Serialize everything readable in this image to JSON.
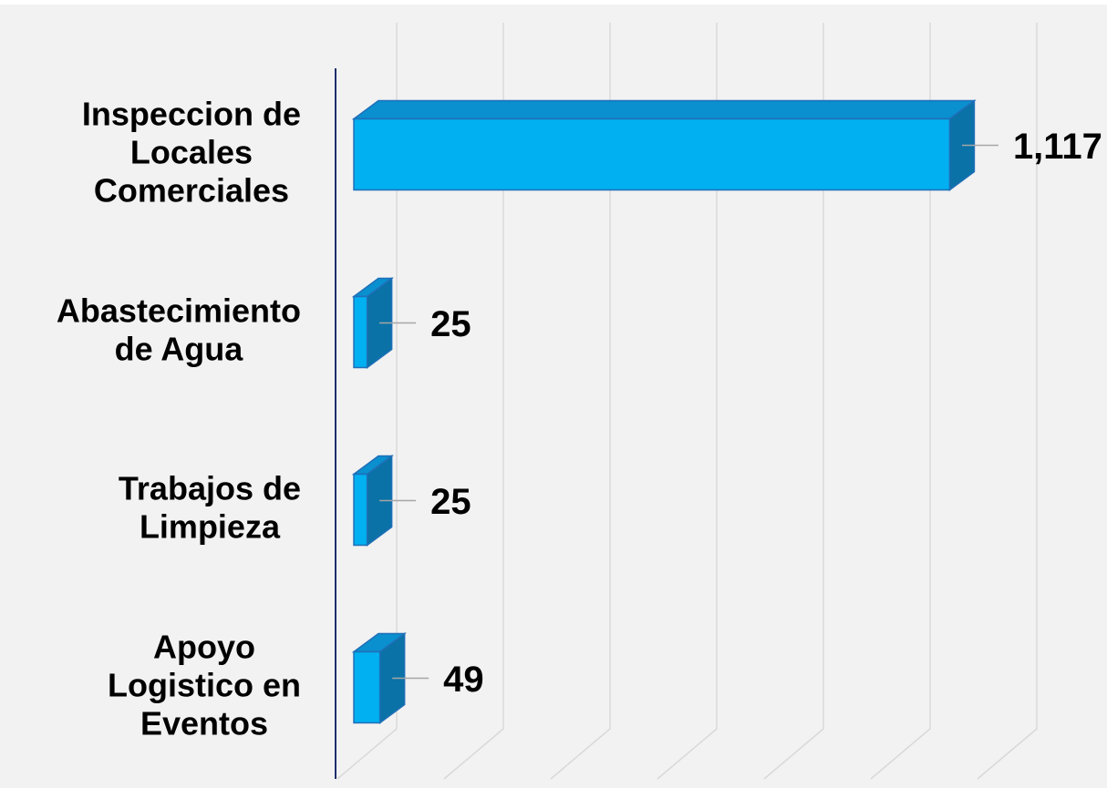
{
  "chart_data": {
    "type": "bar3d_horizontal",
    "categories": [
      [
        "Inspeccion de",
        "Locales",
        "Comerciales"
      ],
      [
        "Abastecimiento",
        "de Agua"
      ],
      [
        "Trabajos de",
        "Limpieza"
      ],
      [
        "Apoyo",
        "Logistico en",
        "Eventos"
      ]
    ],
    "values": [
      1117,
      25,
      25,
      49
    ],
    "value_labels": [
      "1,117",
      "25",
      "25",
      "49"
    ],
    "color": "#00b0f0",
    "xlim": [
      0,
      1200
    ],
    "xticks": [
      0,
      200,
      400,
      600,
      800,
      1000,
      1200
    ],
    "grid": true
  }
}
